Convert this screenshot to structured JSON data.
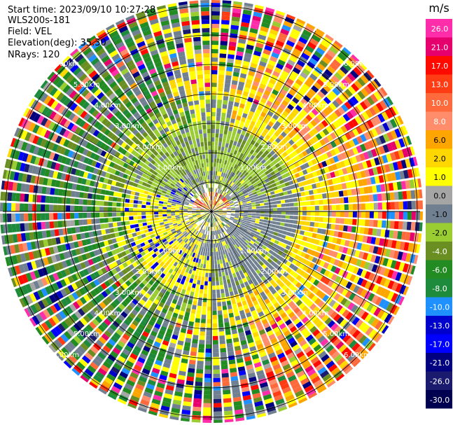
{
  "header": {
    "start_time": "Start time: 2023/09/10 10:27:28",
    "instrument": "WLS200s-181",
    "field": "Field: VEL",
    "elevation": "Elevation(deg): 35.30",
    "nrays": "NRays: 120"
  },
  "colorbar": {
    "unit": "m/s",
    "bins": [
      {
        "label": "26.0",
        "color": "#ff2daa"
      },
      {
        "label": "21.0",
        "color": "#e6006e"
      },
      {
        "label": "17.0",
        "color": "#ff0a00"
      },
      {
        "label": "13.0",
        "color": "#ff3c14"
      },
      {
        "label": "10.0",
        "color": "#ff6a3c"
      },
      {
        "label": "8.0",
        "color": "#ff8c6a"
      },
      {
        "label": "6.0",
        "color": "#ffa500"
      },
      {
        "label": "2.0",
        "color": "#ffd700"
      },
      {
        "label": "1.0",
        "color": "#ffff00"
      },
      {
        "label": "0.0",
        "color": "#a5a5a5"
      },
      {
        "label": "-1.0",
        "color": "#708090"
      },
      {
        "label": "-2.0",
        "color": "#9acd32"
      },
      {
        "label": "-4.0",
        "color": "#6b8e23"
      },
      {
        "label": "-6.0",
        "color": "#228b22"
      },
      {
        "label": "-8.0",
        "color": "#1e8a3c"
      },
      {
        "label": "-10.0",
        "color": "#1e90ff"
      },
      {
        "label": "-13.0",
        "color": "#0000cd"
      },
      {
        "label": "-17.0",
        "color": "#0000ff"
      },
      {
        "label": "-21.0",
        "color": "#000080"
      },
      {
        "label": "-26.0",
        "color": "#1a1a6e"
      },
      {
        "label": "-30.0",
        "color": "#000050"
      }
    ]
  },
  "chart_data": {
    "type": "heatmap",
    "projection": "polar-ppi",
    "field": "VEL",
    "units": "m/s",
    "nrays": 120,
    "range_rings": [
      "1.00km",
      "2.00km",
      "3.00km",
      "4.00km",
      "5.00km",
      "6.00km"
    ],
    "grid": true
  }
}
